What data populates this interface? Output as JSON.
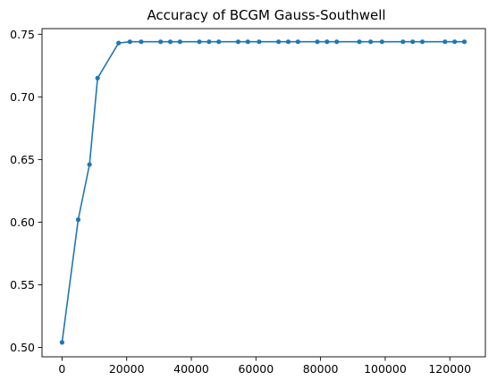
{
  "chart_data": {
    "type": "line",
    "title": "Accuracy of BCGM Gauss-Southwell",
    "xlabel": "",
    "ylabel": "",
    "xlim": [
      -6200,
      131000
    ],
    "ylim": [
      0.4925,
      0.7545
    ],
    "x_ticks": [
      0,
      20000,
      40000,
      60000,
      80000,
      100000,
      120000
    ],
    "x_tick_labels": [
      "0",
      "20000",
      "40000",
      "60000",
      "80000",
      "100000",
      "120000"
    ],
    "y_ticks": [
      0.5,
      0.55,
      0.6,
      0.65,
      0.7,
      0.75
    ],
    "y_tick_labels": [
      "0.50",
      "0.55",
      "0.60",
      "0.65",
      "0.70",
      "0.75"
    ],
    "grid": false,
    "legend": "none",
    "series": [
      {
        "color": "#1f77b4",
        "marker": "circle",
        "x": [
          0,
          5000,
          8500,
          11000,
          17500,
          21000,
          24500,
          30500,
          33500,
          36500,
          42500,
          45500,
          48500,
          54500,
          57500,
          61000,
          67000,
          70000,
          73000,
          79000,
          82000,
          85000,
          92000,
          95500,
          99000,
          105500,
          108500,
          111500,
          118500,
          121500,
          124500
        ],
        "y": [
          0.504,
          0.602,
          0.646,
          0.715,
          0.743,
          0.744,
          0.744,
          0.744,
          0.744,
          0.744,
          0.744,
          0.744,
          0.744,
          0.744,
          0.744,
          0.744,
          0.744,
          0.744,
          0.744,
          0.744,
          0.744,
          0.744,
          0.744,
          0.744,
          0.744,
          0.744,
          0.744,
          0.744,
          0.744,
          0.744,
          0.744
        ]
      }
    ]
  }
}
